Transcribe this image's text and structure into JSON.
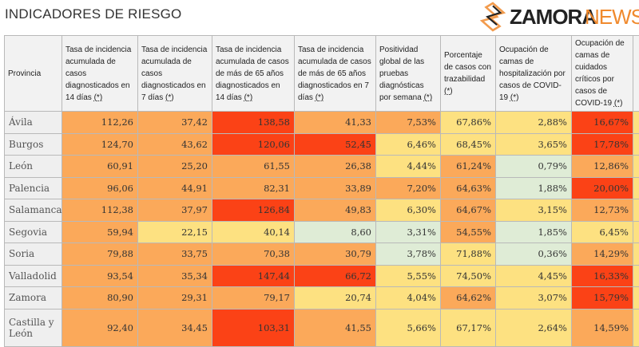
{
  "title": "INDICADORES DE RIESGO",
  "colors": {
    "O": "#fba95a",
    "R": "#fb4216",
    "Y": "#fde181",
    "G": "#dfecd6"
  },
  "headers": [
    {
      "text": "Provincia",
      "ast": ""
    },
    {
      "text": "Tasa de incidencia acumulada de casos diagnosticados en 14 días ",
      "ast": "(*)"
    },
    {
      "text": "Tasa de incidencia acumulada de casos diagnosticados en 7 días ",
      "ast": "(*)"
    },
    {
      "text": "Tasa de incidencia acumulada de casos de más de 65 años diagnosticados en 14 días ",
      "ast": "(*)"
    },
    {
      "text": "Tasa de incidencia acumulada de casos de más de 65 años diagnosticados en 7 días ",
      "ast": "(*)"
    },
    {
      "text": "Positividad global de las pruebas diagnósticas por semana ",
      "ast": "(*)"
    },
    {
      "text": "Porcentaje de casos con trazabilidad ",
      "ast": "(*)"
    },
    {
      "text": "Ocupación de camas de hospitalización por casos de COVID-19 ",
      "ast": "(*)"
    },
    {
      "text": "Ocupación de camas de cuidados críticos por casos de COVID-19 ",
      "ast": "(*)"
    }
  ],
  "rows": [
    {
      "provincia": "Ávila",
      "values": [
        "112,26",
        "37,42",
        "138,58",
        "41,33",
        "7,53%",
        "67,86%",
        "2,88%",
        "16,67%"
      ],
      "levels": [
        "O",
        "O",
        "R",
        "O",
        "O",
        "Y",
        "Y",
        "R",
        "Y"
      ]
    },
    {
      "provincia": "Burgos",
      "values": [
        "124,70",
        "43,62",
        "120,06",
        "52,45",
        "6,46%",
        "68,45%",
        "3,65%",
        "17,78%"
      ],
      "levels": [
        "O",
        "O",
        "R",
        "R",
        "Y",
        "Y",
        "Y",
        "R",
        "Y"
      ]
    },
    {
      "provincia": "León",
      "values": [
        "60,91",
        "25,20",
        "61,55",
        "26,38",
        "4,44%",
        "61,24%",
        "0,79%",
        "12,86%"
      ],
      "levels": [
        "O",
        "O",
        "O",
        "O",
        "Y",
        "O",
        "G",
        "O",
        "Y"
      ]
    },
    {
      "provincia": "Palencia",
      "values": [
        "96,06",
        "44,91",
        "82,31",
        "33,89",
        "7,20%",
        "64,63%",
        "1,88%",
        "20,00%"
      ],
      "levels": [
        "O",
        "O",
        "O",
        "O",
        "O",
        "O",
        "G",
        "R",
        "Y"
      ]
    },
    {
      "provincia": "Salamanca",
      "values": [
        "112,38",
        "37,97",
        "126,84",
        "49,83",
        "6,30%",
        "64,67%",
        "3,15%",
        "12,73%"
      ],
      "levels": [
        "O",
        "O",
        "R",
        "O",
        "Y",
        "O",
        "Y",
        "O",
        "Y"
      ]
    },
    {
      "provincia": "Segovia",
      "values": [
        "59,94",
        "22,15",
        "40,14",
        "8,60",
        "3,31%",
        "54,55%",
        "1,85%",
        "6,45%"
      ],
      "levels": [
        "O",
        "Y",
        "Y",
        "G",
        "G",
        "O",
        "G",
        "Y",
        "Y"
      ]
    },
    {
      "provincia": "Soria",
      "values": [
        "79,88",
        "33,75",
        "70,38",
        "30,79",
        "3,78%",
        "71,88%",
        "0,36%",
        "14,29%"
      ],
      "levels": [
        "O",
        "O",
        "O",
        "O",
        "G",
        "Y",
        "G",
        "O",
        "Y"
      ]
    },
    {
      "provincia": "Valladolid",
      "values": [
        "93,54",
        "35,34",
        "147,44",
        "66,72",
        "5,55%",
        "74,50%",
        "4,45%",
        "16,33%"
      ],
      "levels": [
        "O",
        "O",
        "R",
        "R",
        "Y",
        "Y",
        "Y",
        "R",
        "Y"
      ]
    },
    {
      "provincia": "Zamora",
      "values": [
        "80,90",
        "29,31",
        "79,17",
        "20,74",
        "4,04%",
        "64,62%",
        "3,07%",
        "15,79%"
      ],
      "levels": [
        "O",
        "O",
        "O",
        "Y",
        "Y",
        "O",
        "Y",
        "R",
        "Y"
      ]
    },
    {
      "provincia": "Castilla y León",
      "values": [
        "92,40",
        "34,45",
        "103,31",
        "41,55",
        "5,66%",
        "67,17%",
        "2,64%",
        "14,59%"
      ],
      "levels": [
        "O",
        "O",
        "R",
        "O",
        "Y",
        "Y",
        "Y",
        "O",
        "Y"
      ]
    }
  ],
  "watermark": {
    "brand": "ZAMORA",
    "suffix": "NEWS"
  }
}
